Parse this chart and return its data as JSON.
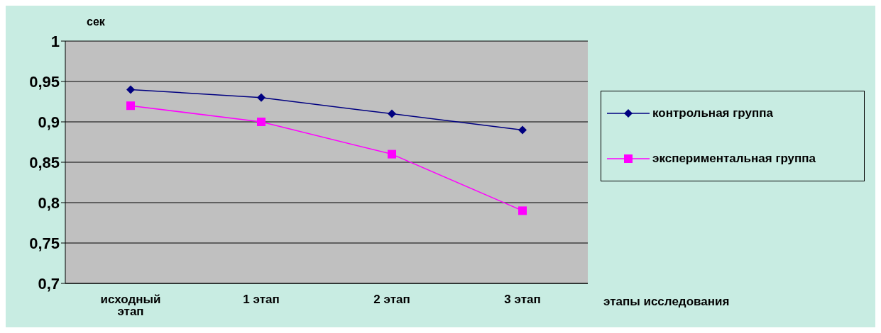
{
  "chart_data": {
    "type": "line",
    "ylabel": "сек",
    "xlabel": "этапы исследования",
    "categories": [
      "исходный этап",
      "1 этап",
      "2 этап",
      "3 этап"
    ],
    "series": [
      {
        "name": "контрольная группа",
        "color": "#000080",
        "marker": "diamond",
        "values": [
          0.94,
          0.93,
          0.91,
          0.89
        ]
      },
      {
        "name": "экспериментальная группа",
        "color": "#ff00ff",
        "marker": "square",
        "values": [
          0.92,
          0.9,
          0.86,
          0.79
        ]
      }
    ],
    "ylim": [
      0.7,
      1
    ],
    "yticks": [
      {
        "value": 0.7,
        "label": "0,7"
      },
      {
        "value": 0.75,
        "label": "0,75"
      },
      {
        "value": 0.8,
        "label": "0,8"
      },
      {
        "value": 0.85,
        "label": "0,85"
      },
      {
        "value": 0.9,
        "label": "0,9"
      },
      {
        "value": 0.95,
        "label": "0,95"
      },
      {
        "value": 1,
        "label": "1"
      }
    ],
    "grid": "y",
    "legend": "right"
  }
}
